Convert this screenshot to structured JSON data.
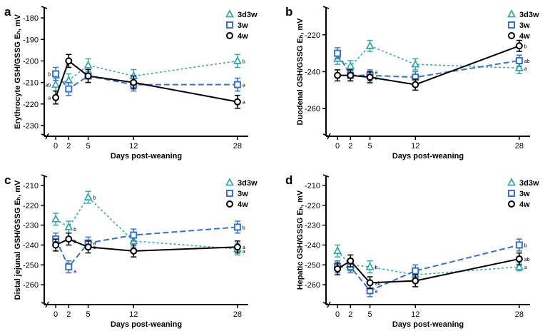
{
  "legend_labels": [
    "3d3w",
    "3w",
    "4w"
  ],
  "colors": {
    "3d3w": "#3aa8a8",
    "3w": "#3a72c8",
    "4w": "#000000"
  },
  "chart_data": [
    {
      "type": "line",
      "panel": "a",
      "ylabel": "Erythrocyte GSH/GSSG Eₕ, mV",
      "xlabel": "Days post-weaning",
      "x": [
        0,
        2,
        5,
        12,
        28
      ],
      "x_tick_labels": [
        "0",
        "2",
        "5",
        "12",
        "28"
      ],
      "xlim": [
        -1,
        29
      ],
      "ylim": [
        -235,
        -175
      ],
      "yticks": [
        -180,
        -190,
        -200,
        -210,
        -220,
        -230
      ],
      "y_tick_labels": [
        "-180",
        "-190",
        "-200",
        "-210",
        "-220",
        "-230"
      ],
      "series": [
        {
          "name": "3d3w",
          "values": [
            -211,
            -209,
            -202,
            -207,
            -200
          ],
          "err": [
            3,
            3,
            3,
            3,
            3
          ]
        },
        {
          "name": "3w",
          "values": [
            -206,
            -213,
            -207,
            -211,
            -211
          ],
          "err": [
            3,
            3,
            3,
            3,
            3
          ]
        },
        {
          "name": "4w",
          "values": [
            -217,
            -200,
            -207,
            -210,
            -219
          ],
          "err": [
            3,
            3,
            3,
            3,
            3
          ]
        }
      ],
      "annotations": [
        {
          "text": "b",
          "x": 0,
          "y": -206,
          "side": "left"
        },
        {
          "text": "ab",
          "x": 0,
          "y": -211,
          "side": "left"
        },
        {
          "text": "a",
          "x": 0,
          "y": -217,
          "side": "left"
        },
        {
          "text": "b",
          "x": 28,
          "y": -200,
          "side": "right"
        },
        {
          "text": "a",
          "x": 28,
          "y": -211,
          "side": "right"
        },
        {
          "text": "a",
          "x": 28,
          "y": -219,
          "side": "right"
        }
      ]
    },
    {
      "type": "line",
      "panel": "b",
      "ylabel": "Duodenal GSH/GSSG Eₕ, mV",
      "xlabel": "Days post-weaning",
      "x": [
        0,
        2,
        5,
        12,
        28
      ],
      "x_tick_labels": [
        "0",
        "2",
        "5",
        "12",
        "28"
      ],
      "xlim": [
        -1,
        29
      ],
      "ylim": [
        -275,
        -205
      ],
      "yticks": [
        -220,
        -240,
        -260
      ],
      "y_tick_labels": [
        "-220",
        "-240",
        "-260"
      ],
      "series": [
        {
          "name": "3d3w",
          "values": [
            -233,
            -237,
            -226,
            -236,
            -238
          ],
          "err": [
            3,
            3,
            3,
            3,
            3
          ]
        },
        {
          "name": "3w",
          "values": [
            -230,
            -242,
            -242,
            -243,
            -234
          ],
          "err": [
            3,
            3,
            3,
            3,
            3
          ]
        },
        {
          "name": "4w",
          "values": [
            -242,
            -242,
            -243,
            -247,
            -226
          ],
          "err": [
            3,
            3,
            3,
            3,
            3
          ]
        }
      ],
      "annotations": [
        {
          "text": "a",
          "x": 5,
          "y": -240,
          "side": "right"
        },
        {
          "text": "a",
          "x": 5,
          "y": -243,
          "side": "right"
        },
        {
          "text": "b",
          "x": 28,
          "y": -226,
          "side": "right"
        },
        {
          "text": "ab",
          "x": 28,
          "y": -234,
          "side": "right"
        },
        {
          "text": "a",
          "x": 28,
          "y": -238,
          "side": "right"
        }
      ]
    },
    {
      "type": "line",
      "panel": "c",
      "ylabel": "Distal jejunal GSH/GSSG Eₕ, mV",
      "xlabel": "Days post-weaning",
      "x": [
        0,
        2,
        5,
        12,
        28
      ],
      "x_tick_labels": [
        "0",
        "2",
        "5",
        "12",
        "28"
      ],
      "xlim": [
        -1,
        29
      ],
      "ylim": [
        -270,
        -205
      ],
      "yticks": [
        -210,
        -220,
        -230,
        -240,
        -250,
        -260
      ],
      "y_tick_labels": [
        "-210",
        "-220",
        "-230",
        "-240",
        "-250",
        "-260"
      ],
      "series": [
        {
          "name": "3d3w",
          "values": [
            -227,
            -231,
            -216,
            -238,
            -242
          ],
          "err": [
            3,
            3,
            3,
            3,
            3
          ]
        },
        {
          "name": "3w",
          "values": [
            -237,
            -251,
            -239,
            -235,
            -231
          ],
          "err": [
            3,
            3,
            3,
            3,
            3
          ]
        },
        {
          "name": "4w",
          "values": [
            -240,
            -237,
            -241,
            -243,
            -241
          ],
          "err": [
            3,
            3,
            3,
            3,
            3
          ]
        }
      ],
      "annotations": [
        {
          "text": "b",
          "x": 2,
          "y": -232,
          "side": "right"
        },
        {
          "text": "b",
          "x": 2,
          "y": -238,
          "side": "right"
        },
        {
          "text": "a",
          "x": 2,
          "y": -253,
          "side": "right"
        },
        {
          "text": "b",
          "x": 5,
          "y": -216,
          "side": "right"
        },
        {
          "text": "a",
          "x": 5,
          "y": -239,
          "side": "right"
        },
        {
          "text": "a",
          "x": 5,
          "y": -241,
          "side": "right"
        },
        {
          "text": "b",
          "x": 28,
          "y": -231,
          "side": "right"
        },
        {
          "text": "a",
          "x": 28,
          "y": -241,
          "side": "right"
        },
        {
          "text": "a",
          "x": 28,
          "y": -243,
          "side": "right"
        }
      ]
    },
    {
      "type": "line",
      "panel": "d",
      "ylabel": "Hepatic GSH/GSSG Eₕ, mV",
      "xlabel": "Days post-weaning",
      "x": [
        0,
        2,
        5,
        12,
        28
      ],
      "x_tick_labels": [
        "0",
        "2",
        "5",
        "12",
        "28"
      ],
      "xlim": [
        -1,
        29
      ],
      "ylim": [
        -270,
        -205
      ],
      "yticks": [
        -210,
        -220,
        -230,
        -240,
        -250,
        -260
      ],
      "y_tick_labels": [
        "-210",
        "-220",
        "-230",
        "-240",
        "-250",
        "-260"
      ],
      "series": [
        {
          "name": "3d3w",
          "values": [
            -243,
            -250,
            -251,
            -255,
            -251
          ],
          "err": [
            3,
            3,
            3,
            3,
            2
          ]
        },
        {
          "name": "3w",
          "values": [
            -251,
            -251,
            -263,
            -253,
            -240
          ],
          "err": [
            3,
            3,
            3,
            3,
            3
          ]
        },
        {
          "name": "4w",
          "values": [
            -252,
            -248,
            -259,
            -258,
            -247
          ],
          "err": [
            3,
            3,
            3,
            3,
            3
          ]
        }
      ],
      "annotations": [
        {
          "text": "b",
          "x": 5,
          "y": -251,
          "side": "right"
        },
        {
          "text": "ab",
          "x": 5,
          "y": -259,
          "side": "right"
        },
        {
          "text": "a",
          "x": 5,
          "y": -263,
          "side": "right"
        },
        {
          "text": "b",
          "x": 28,
          "y": -240,
          "side": "right"
        },
        {
          "text": "ab",
          "x": 28,
          "y": -247,
          "side": "right"
        },
        {
          "text": "a",
          "x": 28,
          "y": -251,
          "side": "right"
        }
      ]
    }
  ]
}
